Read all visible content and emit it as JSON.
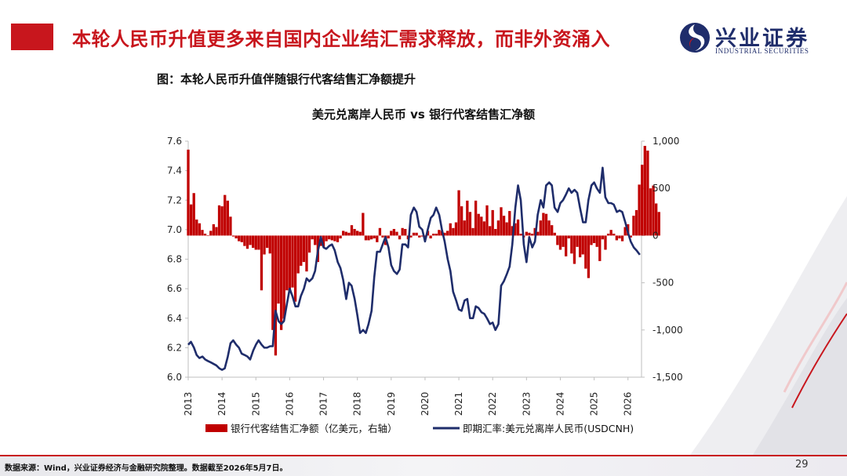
{
  "slide": {
    "title": "本轮人民币升值更多来自国内企业结汇需求释放，而非外资涌入",
    "figure_title": "图：本轮人民币升值伴随银行代客结售汇净额提升",
    "source": "数据来源：Wind，兴业证券经济与金融研究院整理。数据截至2026年5月7日。",
    "page": "29"
  },
  "logo": {
    "cn": "兴业证券",
    "en": "INDUSTRIAL SECURITIES",
    "icon": "company-logo-mark"
  },
  "colors": {
    "accent": "#c8161d",
    "bar": "#c00000",
    "line": "#1f2d6b",
    "brand": "#1f2d6b"
  },
  "chart_data": {
    "type": "bar+line",
    "title": "美元兑离岸人民币 vs 银行代客结售汇净额",
    "x_ticks": [
      "2013",
      "2014",
      "2015",
      "2016",
      "2017",
      "2018",
      "2019",
      "2020",
      "2021",
      "2022",
      "2023",
      "2024",
      "2025",
      "2026"
    ],
    "y_left": {
      "ticks": [
        "7.6",
        "7.4",
        "7.2",
        "7.0",
        "6.8",
        "6.6",
        "6.4",
        "6.2",
        "6.0"
      ],
      "range": [
        6.0,
        7.6
      ]
    },
    "y_right": {
      "ticks": [
        "1,000",
        "500",
        "0",
        "-500",
        "-1,000",
        "-1,500"
      ],
      "range": [
        -1500,
        1000
      ]
    },
    "legend": {
      "position": "bottom",
      "bars": "银行代客结售汇净额（亿美元，右轴）",
      "line": "即期汇率:美元兑离岸人民币(USDCNH)"
    },
    "bars_series": {
      "name": "银行代客结售汇净额（亿美元，右轴）",
      "start": 2013.0,
      "step_years": 0.08333,
      "values": [
        910,
        330,
        450,
        170,
        130,
        60,
        20,
        0,
        50,
        120,
        90,
        320,
        310,
        430,
        370,
        200,
        -10,
        -30,
        -60,
        -70,
        -110,
        -140,
        -100,
        -130,
        -150,
        -150,
        -580,
        -200,
        -130,
        -190,
        -1000,
        -1270,
        -720,
        -1000,
        -880,
        -580,
        -600,
        -550,
        -700,
        -400,
        -320,
        -280,
        -380,
        -180,
        -40,
        -100,
        -280,
        -110,
        -120,
        -60,
        -40,
        -50,
        -60,
        -70,
        -30,
        50,
        40,
        30,
        110,
        70,
        50,
        40,
        240,
        -50,
        -50,
        -40,
        -30,
        -70,
        80,
        -20,
        -100,
        -30,
        50,
        70,
        40,
        -40,
        80,
        70,
        -40,
        -20,
        30,
        30,
        -20,
        -10,
        -40,
        50,
        -30,
        20,
        20,
        60,
        50,
        30,
        50,
        130,
        80,
        140,
        480,
        310,
        160,
        370,
        250,
        80,
        370,
        230,
        200,
        150,
        320,
        100,
        270,
        70,
        160,
        300,
        210,
        140,
        260,
        100,
        130,
        170,
        20,
        -20,
        40,
        30,
        20,
        80,
        40,
        160,
        240,
        230,
        160,
        110,
        30,
        -100,
        -150,
        -120,
        -220,
        -30,
        -190,
        -300,
        -120,
        -230,
        -200,
        -350,
        -450,
        -100,
        -80,
        -120,
        -270,
        -40,
        -150,
        20,
        60,
        20,
        -50,
        -30,
        -60,
        90,
        120,
        -20,
        210,
        270,
        540,
        750,
        950,
        900,
        500,
        530,
        340,
        250
      ],
      "unit": "亿美元"
    },
    "line_series": {
      "name": "即期汇率:美元兑离岸人民币(USDCNH)",
      "points": [
        [
          2013.0,
          6.22
        ],
        [
          2013.08,
          6.24
        ],
        [
          2013.17,
          6.2
        ],
        [
          2013.25,
          6.15
        ],
        [
          2013.33,
          6.13
        ],
        [
          2013.42,
          6.14
        ],
        [
          2013.5,
          6.12
        ],
        [
          2013.58,
          6.11
        ],
        [
          2013.67,
          6.1
        ],
        [
          2013.75,
          6.09
        ],
        [
          2013.83,
          6.08
        ],
        [
          2013.92,
          6.06
        ],
        [
          2014.0,
          6.05
        ],
        [
          2014.08,
          6.06
        ],
        [
          2014.17,
          6.14
        ],
        [
          2014.25,
          6.23
        ],
        [
          2014.33,
          6.25
        ],
        [
          2014.42,
          6.22
        ],
        [
          2014.5,
          6.2
        ],
        [
          2014.58,
          6.16
        ],
        [
          2014.67,
          6.15
        ],
        [
          2014.75,
          6.14
        ],
        [
          2014.83,
          6.12
        ],
        [
          2014.92,
          6.18
        ],
        [
          2015.0,
          6.22
        ],
        [
          2015.08,
          6.25
        ],
        [
          2015.17,
          6.22
        ],
        [
          2015.25,
          6.2
        ],
        [
          2015.33,
          6.2
        ],
        [
          2015.42,
          6.21
        ],
        [
          2015.5,
          6.21
        ],
        [
          2015.58,
          6.45
        ],
        [
          2015.67,
          6.38
        ],
        [
          2015.75,
          6.36
        ],
        [
          2015.83,
          6.38
        ],
        [
          2015.92,
          6.5
        ],
        [
          2016.0,
          6.6
        ],
        [
          2016.08,
          6.55
        ],
        [
          2016.17,
          6.48
        ],
        [
          2016.25,
          6.48
        ],
        [
          2016.33,
          6.55
        ],
        [
          2016.42,
          6.6
        ],
        [
          2016.5,
          6.67
        ],
        [
          2016.58,
          6.65
        ],
        [
          2016.67,
          6.67
        ],
        [
          2016.75,
          6.72
        ],
        [
          2016.83,
          6.85
        ],
        [
          2016.92,
          6.95
        ],
        [
          2017.0,
          6.88
        ],
        [
          2017.08,
          6.87
        ],
        [
          2017.17,
          6.89
        ],
        [
          2017.25,
          6.9
        ],
        [
          2017.33,
          6.86
        ],
        [
          2017.42,
          6.78
        ],
        [
          2017.5,
          6.74
        ],
        [
          2017.58,
          6.66
        ],
        [
          2017.67,
          6.53
        ],
        [
          2017.75,
          6.64
        ],
        [
          2017.83,
          6.62
        ],
        [
          2017.92,
          6.53
        ],
        [
          2018.0,
          6.42
        ],
        [
          2018.08,
          6.3
        ],
        [
          2018.17,
          6.32
        ],
        [
          2018.25,
          6.3
        ],
        [
          2018.33,
          6.36
        ],
        [
          2018.42,
          6.45
        ],
        [
          2018.5,
          6.68
        ],
        [
          2018.58,
          6.85
        ],
        [
          2018.67,
          6.85
        ],
        [
          2018.75,
          6.9
        ],
        [
          2018.83,
          6.95
        ],
        [
          2018.92,
          6.88
        ],
        [
          2019.0,
          6.76
        ],
        [
          2019.08,
          6.72
        ],
        [
          2019.17,
          6.7
        ],
        [
          2019.25,
          6.73
        ],
        [
          2019.33,
          6.9
        ],
        [
          2019.42,
          6.9
        ],
        [
          2019.5,
          6.88
        ],
        [
          2019.58,
          7.1
        ],
        [
          2019.67,
          7.15
        ],
        [
          2019.75,
          7.12
        ],
        [
          2019.83,
          7.02
        ],
        [
          2019.92,
          7.0
        ],
        [
          2020.0,
          6.92
        ],
        [
          2020.08,
          7.0
        ],
        [
          2020.17,
          7.08
        ],
        [
          2020.25,
          7.1
        ],
        [
          2020.33,
          7.15
        ],
        [
          2020.42,
          7.1
        ],
        [
          2020.5,
          7.0
        ],
        [
          2020.58,
          6.92
        ],
        [
          2020.67,
          6.8
        ],
        [
          2020.75,
          6.72
        ],
        [
          2020.83,
          6.58
        ],
        [
          2020.92,
          6.52
        ],
        [
          2021.0,
          6.46
        ],
        [
          2021.08,
          6.45
        ],
        [
          2021.17,
          6.52
        ],
        [
          2021.25,
          6.53
        ],
        [
          2021.33,
          6.4
        ],
        [
          2021.42,
          6.4
        ],
        [
          2021.5,
          6.48
        ],
        [
          2021.58,
          6.47
        ],
        [
          2021.67,
          6.44
        ],
        [
          2021.75,
          6.43
        ],
        [
          2021.83,
          6.4
        ],
        [
          2021.92,
          6.36
        ],
        [
          2022.0,
          6.37
        ],
        [
          2022.08,
          6.32
        ],
        [
          2022.17,
          6.36
        ],
        [
          2022.25,
          6.62
        ],
        [
          2022.33,
          6.65
        ],
        [
          2022.42,
          6.7
        ],
        [
          2022.5,
          6.75
        ],
        [
          2022.58,
          6.9
        ],
        [
          2022.67,
          7.15
        ],
        [
          2022.75,
          7.3
        ],
        [
          2022.83,
          7.2
        ],
        [
          2022.92,
          6.9
        ],
        [
          2023.0,
          6.78
        ],
        [
          2023.08,
          6.95
        ],
        [
          2023.17,
          6.88
        ],
        [
          2023.25,
          6.92
        ],
        [
          2023.33,
          7.1
        ],
        [
          2023.42,
          7.2
        ],
        [
          2023.5,
          7.15
        ],
        [
          2023.58,
          7.3
        ],
        [
          2023.67,
          7.32
        ],
        [
          2023.75,
          7.3
        ],
        [
          2023.83,
          7.15
        ],
        [
          2023.92,
          7.12
        ],
        [
          2024.0,
          7.18
        ],
        [
          2024.08,
          7.2
        ],
        [
          2024.17,
          7.24
        ],
        [
          2024.25,
          7.28
        ],
        [
          2024.33,
          7.25
        ],
        [
          2024.42,
          7.27
        ],
        [
          2024.5,
          7.25
        ],
        [
          2024.58,
          7.15
        ],
        [
          2024.67,
          7.05
        ],
        [
          2024.75,
          7.05
        ],
        [
          2024.83,
          7.2
        ],
        [
          2024.92,
          7.3
        ],
        [
          2025.0,
          7.32
        ],
        [
          2025.08,
          7.28
        ],
        [
          2025.17,
          7.25
        ],
        [
          2025.25,
          7.42
        ],
        [
          2025.33,
          7.22
        ],
        [
          2025.42,
          7.18
        ],
        [
          2025.5,
          7.18
        ],
        [
          2025.58,
          7.17
        ],
        [
          2025.67,
          7.12
        ],
        [
          2025.75,
          7.13
        ],
        [
          2025.83,
          7.12
        ],
        [
          2025.92,
          7.05
        ],
        [
          2026.0,
          6.98
        ],
        [
          2026.08,
          6.92
        ],
        [
          2026.17,
          6.88
        ],
        [
          2026.25,
          6.86
        ],
        [
          2026.35,
          6.83
        ]
      ]
    }
  }
}
